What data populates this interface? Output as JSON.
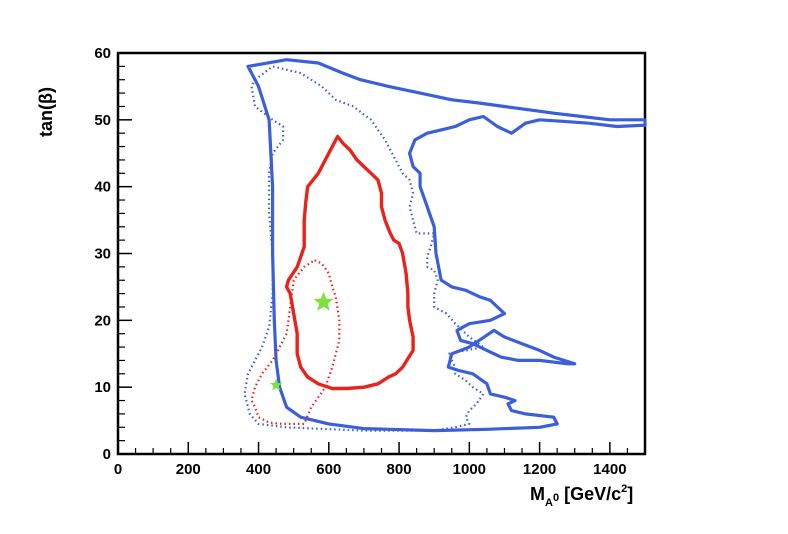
{
  "chart_data": {
    "type": "line",
    "title": "",
    "xlabel": {
      "main": "M",
      "sub": "A",
      "subsup": "0",
      "unit_pre": " [GeV/c",
      "unit_sup": "2",
      "unit_post": "]"
    },
    "ylabel": "tan(β)",
    "xlim": [
      0,
      1500
    ],
    "ylim": [
      0,
      60
    ],
    "xticks": [
      0,
      200,
      400,
      600,
      800,
      1000,
      1200,
      1400
    ],
    "yticks": [
      0,
      10,
      20,
      30,
      40,
      50,
      60
    ],
    "grid": false,
    "colors": {
      "blue": "#3a5fd8",
      "red": "#e8231b",
      "star": "#7ee040"
    },
    "series": [
      {
        "color": "blue",
        "style": "solid",
        "width": 3.2,
        "points": [
          [
            370,
            58
          ],
          [
            480,
            59
          ],
          [
            570,
            58.5
          ],
          [
            640,
            57
          ],
          [
            690,
            56
          ],
          [
            770,
            55
          ],
          [
            860,
            54
          ],
          [
            950,
            53
          ],
          [
            1030,
            52.5
          ],
          [
            1100,
            52
          ],
          [
            1170,
            51.5
          ],
          [
            1240,
            51
          ],
          [
            1320,
            50.5
          ],
          [
            1400,
            50
          ],
          [
            1500,
            50
          ],
          [
            1500,
            49.2
          ],
          [
            1420,
            49
          ],
          [
            1340,
            49.5
          ],
          [
            1260,
            49.8
          ],
          [
            1200,
            50
          ],
          [
            1160,
            49.5
          ],
          [
            1120,
            48
          ],
          [
            1080,
            49
          ],
          [
            1040,
            50.5
          ],
          [
            1000,
            50
          ],
          [
            960,
            49
          ],
          [
            920,
            48.5
          ],
          [
            880,
            48
          ],
          [
            845,
            47
          ],
          [
            830,
            45
          ],
          [
            840,
            43
          ],
          [
            860,
            42
          ],
          [
            860,
            40
          ],
          [
            880,
            37
          ],
          [
            900,
            34
          ],
          [
            905,
            30
          ],
          [
            920,
            26
          ],
          [
            950,
            25
          ],
          [
            990,
            24.5
          ],
          [
            1030,
            23.5
          ],
          [
            1060,
            23
          ],
          [
            1080,
            22
          ],
          [
            1100,
            21
          ],
          [
            1060,
            20
          ],
          [
            1000,
            19.5
          ],
          [
            965,
            18.5
          ],
          [
            975,
            17
          ],
          [
            1010,
            16.5
          ],
          [
            1050,
            15.5
          ],
          [
            1090,
            14.5
          ],
          [
            1140,
            14
          ],
          [
            1200,
            14
          ],
          [
            1280,
            13.5
          ],
          [
            1300,
            13.5
          ],
          [
            1240,
            14.5
          ],
          [
            1200,
            15.5
          ],
          [
            1150,
            16.5
          ],
          [
            1100,
            17.5
          ],
          [
            1070,
            18.5
          ],
          [
            1000,
            16
          ],
          [
            950,
            15
          ],
          [
            940,
            13
          ],
          [
            970,
            12.5
          ],
          [
            1010,
            12
          ],
          [
            1050,
            10.5
          ],
          [
            1060,
            9
          ],
          [
            1100,
            8.5
          ],
          [
            1130,
            8
          ],
          [
            1110,
            7.5
          ],
          [
            1120,
            6.5
          ],
          [
            1160,
            6
          ],
          [
            1240,
            5.5
          ],
          [
            1250,
            4.5
          ],
          [
            1200,
            4
          ],
          [
            1050,
            3.7
          ],
          [
            900,
            3.5
          ],
          [
            700,
            3.8
          ],
          [
            600,
            4.5
          ],
          [
            520,
            5.5
          ],
          [
            480,
            7
          ],
          [
            460,
            10
          ],
          [
            450,
            14
          ],
          [
            445,
            20
          ],
          [
            440,
            30
          ],
          [
            440,
            40
          ],
          [
            430,
            50
          ],
          [
            400,
            55
          ],
          [
            370,
            58
          ]
        ]
      },
      {
        "color": "blue",
        "style": "dotted",
        "width": 2.2,
        "points": [
          [
            390,
            56
          ],
          [
            440,
            58
          ],
          [
            520,
            57
          ],
          [
            580,
            55
          ],
          [
            620,
            53
          ],
          [
            670,
            52
          ],
          [
            720,
            50
          ],
          [
            760,
            47
          ],
          [
            790,
            44
          ],
          [
            810,
            42
          ],
          [
            830,
            41
          ],
          [
            840,
            39
          ],
          [
            830,
            37
          ],
          [
            840,
            35
          ],
          [
            850,
            33
          ],
          [
            880,
            33
          ],
          [
            900,
            33
          ],
          [
            890,
            31
          ],
          [
            880,
            29.5
          ],
          [
            880,
            28
          ],
          [
            900,
            27.5
          ],
          [
            910,
            26
          ],
          [
            900,
            24
          ],
          [
            900,
            22
          ],
          [
            935,
            21
          ],
          [
            960,
            19.5
          ],
          [
            1000,
            17.5
          ],
          [
            1040,
            16
          ],
          [
            940,
            15
          ],
          [
            960,
            13
          ],
          [
            960,
            12
          ],
          [
            990,
            11
          ],
          [
            1010,
            10
          ],
          [
            1040,
            9
          ],
          [
            1020,
            7.5
          ],
          [
            1000,
            6.5
          ],
          [
            990,
            5.5
          ],
          [
            1000,
            4.5
          ],
          [
            960,
            4
          ],
          [
            900,
            3.5
          ],
          [
            700,
            3.5
          ],
          [
            560,
            3.8
          ],
          [
            480,
            4
          ],
          [
            400,
            4.5
          ],
          [
            375,
            6
          ],
          [
            360,
            9
          ],
          [
            370,
            12
          ],
          [
            390,
            14
          ],
          [
            410,
            16
          ],
          [
            430,
            19
          ],
          [
            440,
            24
          ],
          [
            440,
            30
          ],
          [
            430,
            36
          ],
          [
            430,
            42
          ],
          [
            440,
            45
          ],
          [
            470,
            47
          ],
          [
            470,
            49
          ],
          [
            440,
            50
          ],
          [
            390,
            52
          ],
          [
            380,
            55
          ],
          [
            390,
            56
          ]
        ]
      },
      {
        "color": "red",
        "style": "solid",
        "width": 3.4,
        "points": [
          [
            625,
            47.5
          ],
          [
            640,
            46.5
          ],
          [
            660,
            45.5
          ],
          [
            680,
            44
          ],
          [
            700,
            43
          ],
          [
            720,
            42
          ],
          [
            740,
            41
          ],
          [
            750,
            39
          ],
          [
            750,
            37
          ],
          [
            760,
            35
          ],
          [
            775,
            33
          ],
          [
            785,
            32
          ],
          [
            800,
            31.5
          ],
          [
            810,
            30
          ],
          [
            820,
            27
          ],
          [
            825,
            24
          ],
          [
            825,
            22
          ],
          [
            830,
            20
          ],
          [
            840,
            17.5
          ],
          [
            840,
            15.5
          ],
          [
            810,
            13
          ],
          [
            790,
            12
          ],
          [
            770,
            11.5
          ],
          [
            740,
            10.5
          ],
          [
            700,
            10
          ],
          [
            650,
            9.8
          ],
          [
            610,
            9.8
          ],
          [
            570,
            10.5
          ],
          [
            540,
            11.5
          ],
          [
            520,
            13
          ],
          [
            510,
            15
          ],
          [
            510,
            18
          ],
          [
            500,
            21
          ],
          [
            490,
            24
          ],
          [
            480,
            25
          ],
          [
            485,
            26
          ],
          [
            510,
            28
          ],
          [
            530,
            31
          ],
          [
            530,
            35
          ],
          [
            535,
            38
          ],
          [
            540,
            40
          ],
          [
            570,
            42
          ],
          [
            590,
            44
          ],
          [
            610,
            46
          ],
          [
            625,
            47.5
          ]
        ]
      },
      {
        "color": "red",
        "style": "dotted",
        "width": 2.2,
        "points": [
          [
            560,
            29
          ],
          [
            580,
            28.5
          ],
          [
            600,
            27
          ],
          [
            610,
            25
          ],
          [
            620,
            23.5
          ],
          [
            630,
            20
          ],
          [
            630,
            17
          ],
          [
            610,
            13
          ],
          [
            590,
            10
          ],
          [
            570,
            8.5
          ],
          [
            550,
            7
          ],
          [
            530,
            4.5
          ],
          [
            500,
            4.5
          ],
          [
            470,
            4.5
          ],
          [
            430,
            4.7
          ],
          [
            400,
            5.5
          ],
          [
            390,
            7
          ],
          [
            380,
            8
          ],
          [
            390,
            10
          ],
          [
            410,
            12
          ],
          [
            440,
            14
          ],
          [
            460,
            16
          ],
          [
            480,
            18
          ],
          [
            490,
            22
          ],
          [
            500,
            26
          ],
          [
            530,
            28
          ],
          [
            560,
            29
          ]
        ]
      }
    ],
    "stars": [
      {
        "x": 585,
        "y": 22.7,
        "size": "large"
      },
      {
        "x": 450,
        "y": 10.3,
        "size": "small"
      }
    ]
  }
}
